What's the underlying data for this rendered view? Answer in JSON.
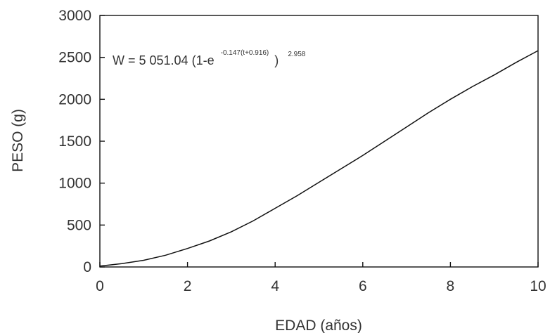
{
  "chart_data": {
    "type": "line",
    "title": "",
    "xlabel": "EDAD (años)",
    "ylabel": "PESO (g)",
    "xlim": [
      0,
      10
    ],
    "ylim": [
      0,
      3000
    ],
    "x_ticks": [
      "0",
      "2",
      "4",
      "6",
      "8",
      "10"
    ],
    "y_ticks": [
      "0",
      "500",
      "1000",
      "1500",
      "2000",
      "2500",
      "3000"
    ],
    "grid": false,
    "legend": "none",
    "annotation": {
      "main": "W = 5 051.04 (1-e",
      "exponent": "-0.147(t+0.916)",
      "close": ")",
      "power": "2.958"
    },
    "series": [
      {
        "x": [
          0,
          0.5,
          1,
          1.5,
          2,
          2.5,
          3,
          3.5,
          4,
          4.5,
          5,
          5.5,
          6,
          6.5,
          7,
          7.5,
          8,
          8.5,
          9,
          9.5,
          10
        ],
        "values": [
          10,
          40,
          80,
          140,
          220,
          310,
          420,
          550,
          700,
          850,
          1010,
          1170,
          1330,
          1500,
          1670,
          1840,
          2000,
          2150,
          2290,
          2440,
          2580
        ]
      }
    ]
  }
}
